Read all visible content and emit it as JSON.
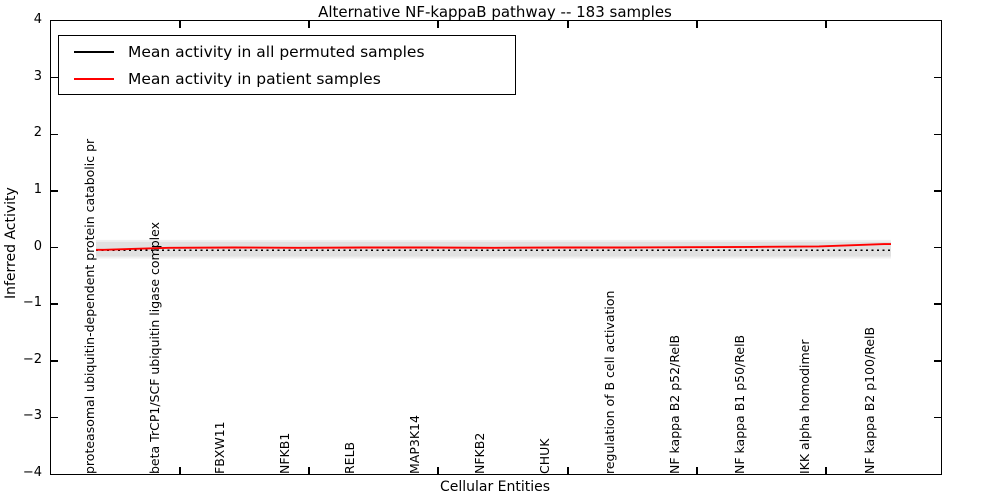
{
  "title": "Alternative NF-kappaB pathway -- 183 samples",
  "chart_data": {
    "type": "line",
    "title": "Alternative NF-kappaB pathway -- 183 samples",
    "xlabel": "Cellular Entities",
    "ylabel": "Inferred Activity",
    "ylim": [
      -4,
      4
    ],
    "yticks": [
      4,
      3,
      2,
      1,
      0,
      -1,
      -2,
      -3,
      -4
    ],
    "ytick_labels": [
      "4",
      "3",
      "2",
      "1",
      "0",
      "−1",
      "−2",
      "−3",
      "−4"
    ],
    "grid": false,
    "legend_position": "upper left",
    "categories": [
      "proteasomal ubiquitin-dependent protein catabolic pr",
      "beta TrCP1/SCF ubiquitin ligase complex",
      "FBXW11",
      "NFKB1",
      "RELB",
      "MAP3K14",
      "NFKB2",
      "CHUK",
      "regulation of B cell activation",
      "NF kappa B2 p52/RelB",
      "NF kappa B1 p50/RelB",
      "IKK alpha homodimer",
      "NF kappa B2 p100/RelB"
    ],
    "series": [
      {
        "name": "Mean activity in all permuted samples",
        "color": "#000000",
        "style": "dotted",
        "values": [
          -0.05,
          -0.05,
          -0.05,
          -0.05,
          -0.05,
          -0.05,
          -0.05,
          -0.05,
          -0.05,
          -0.05,
          -0.05,
          -0.05,
          -0.05
        ]
      },
      {
        "name": "Mean activity in patient samples",
        "color": "#ff0000",
        "style": "solid",
        "values": [
          -0.04,
          -0.005,
          0.0,
          -0.005,
          0.0,
          0.0,
          -0.005,
          0.0,
          0.0,
          0.005,
          0.01,
          0.02,
          0.06
        ]
      }
    ],
    "band": {
      "description": "permutation spread band around zero",
      "upper": 0.1,
      "lower": -0.16,
      "color": "#e1e1e1",
      "outer_color": "#f0f0f0"
    }
  }
}
